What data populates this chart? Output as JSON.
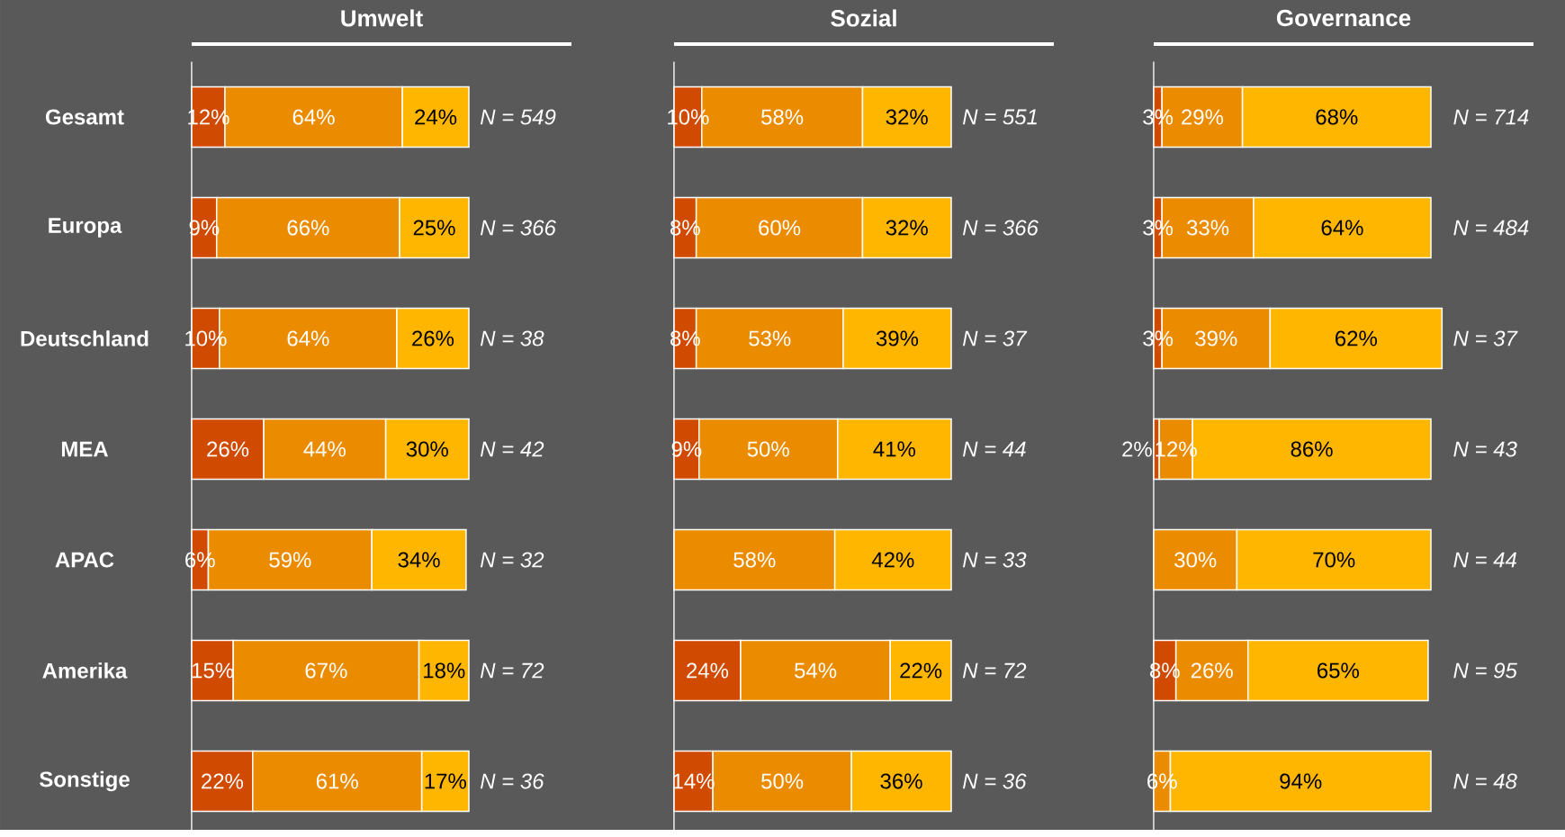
{
  "chart_data": [
    {
      "type": "bar",
      "title": "Umwelt",
      "orientation": "horizontal",
      "stacked": true,
      "tick_labels": "y",
      "categories": [
        "Gesamt",
        "Europa",
        "Deutschland",
        "MEA",
        "APAC",
        "Amerika",
        "Sonstige"
      ],
      "series": [
        {
          "color": "#d04a02",
          "values": [
            12,
            9,
            10,
            26,
            6,
            15,
            22
          ],
          "value_labels": [
            "12%",
            "9%",
            "10%",
            "26%",
            "6%",
            "15%",
            "22%"
          ]
        },
        {
          "color": "#eb8c00",
          "values": [
            64,
            66,
            64,
            44,
            59,
            67,
            61
          ],
          "value_labels": [
            "64%",
            "66%",
            "64%",
            "44%",
            "59%",
            "67%",
            "61%"
          ]
        },
        {
          "color": "#ffb600",
          "values": [
            24,
            25,
            26,
            30,
            34,
            18,
            17
          ],
          "value_labels": [
            "24%",
            "25%",
            "26%",
            "30%",
            "34%",
            "18%",
            "17%"
          ]
        }
      ],
      "annotations": [
        "N = 549",
        "N = 366",
        "N = 38",
        "N = 42",
        "N = 32",
        "N = 72",
        "N = 36"
      ]
    },
    {
      "type": "bar",
      "title": "Sozial",
      "orientation": "horizontal",
      "stacked": true,
      "categories": [
        null,
        null,
        null,
        null,
        null,
        null,
        null
      ],
      "series": [
        {
          "color": "#d04a02",
          "values": [
            10,
            8,
            8,
            9,
            null,
            24,
            14
          ],
          "value_labels": [
            "10%",
            "8%",
            "8%",
            "9%",
            null,
            "24%",
            "14%"
          ]
        },
        {
          "color": "#eb8c00",
          "values": [
            58,
            60,
            53,
            50,
            58,
            54,
            50
          ],
          "value_labels": [
            "58%",
            "60%",
            "53%",
            "50%",
            "58%",
            "54%",
            "50%"
          ]
        },
        {
          "color": "#ffb600",
          "values": [
            32,
            32,
            39,
            41,
            42,
            22,
            36
          ],
          "value_labels": [
            "32%",
            "32%",
            "39%",
            "41%",
            "42%",
            "22%",
            "36%"
          ]
        }
      ],
      "annotations": [
        "N = 551",
        "N = 366",
        "N = 37",
        "N = 44",
        "N = 33",
        "N = 72",
        "N = 36"
      ]
    },
    {
      "type": "bar",
      "title": "Governance",
      "orientation": "horizontal",
      "stacked": true,
      "categories": [
        null,
        null,
        null,
        null,
        null,
        null,
        null
      ],
      "series": [
        {
          "color": "#d04a02",
          "values": [
            3,
            3,
            3,
            2,
            null,
            8,
            null
          ],
          "value_labels": [
            "3%",
            "3%",
            "3%",
            "2%",
            null,
            "8%",
            null
          ]
        },
        {
          "color": "#eb8c00",
          "values": [
            29,
            33,
            39,
            12,
            30,
            26,
            6
          ],
          "value_labels": [
            "29%",
            "33%",
            "39%",
            "12%",
            "30%",
            "26%",
            "6%"
          ]
        },
        {
          "color": "#ffb600",
          "values": [
            68,
            64,
            62,
            86,
            70,
            65,
            94
          ],
          "value_labels": [
            "68%",
            "64%",
            "62%",
            "86%",
            "70%",
            "65%",
            "94%"
          ]
        }
      ],
      "annotations": [
        "N = 714",
        "N = 484",
        "N = 37",
        "N = 43",
        "N = 44",
        "N = 95",
        "N = 48"
      ]
    }
  ]
}
